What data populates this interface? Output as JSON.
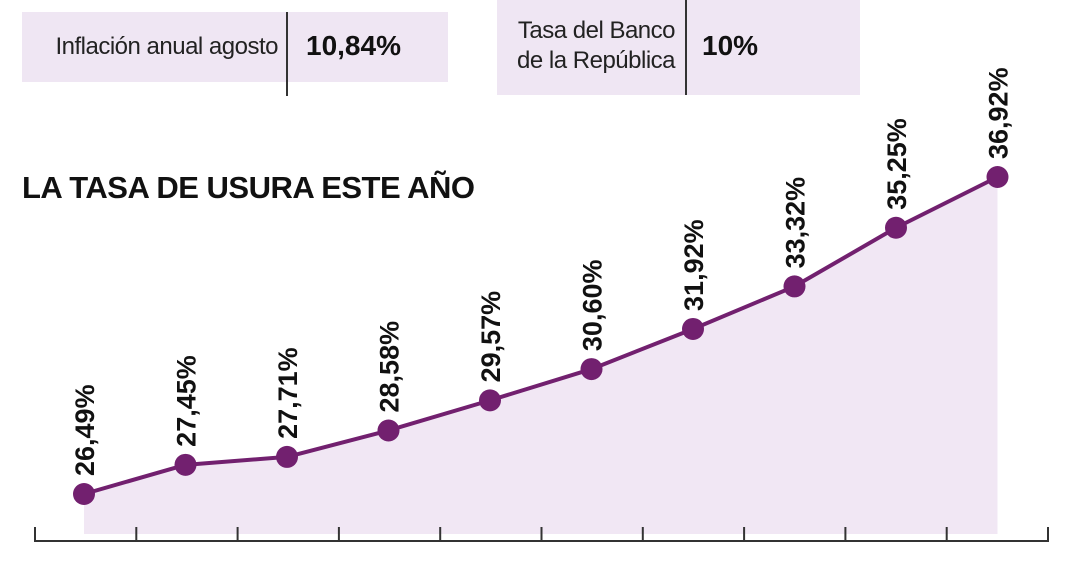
{
  "header": {
    "inflation_label": "Inflación anual agosto",
    "inflation_value": "10,84%",
    "bank_rate_label_line1": "Tasa del Banco",
    "bank_rate_label_line2": "de la República",
    "bank_rate_value": "10%"
  },
  "chart_data": {
    "type": "area",
    "title": "LA TASA DE USURA ESTE AÑO",
    "xlabel": "",
    "ylabel": "",
    "values": [
      26.49,
      27.45,
      27.71,
      28.58,
      29.57,
      30.6,
      31.92,
      33.32,
      35.25,
      36.92
    ],
    "data_labels": [
      "26,49%",
      "27,45%",
      "27,71%",
      "28,58%",
      "29,57%",
      "30,60%",
      "31,92%",
      "33,32%",
      "35,25%",
      "36,92%"
    ],
    "grid": false,
    "legend": "none",
    "colors": {
      "line": "#72206f",
      "fill": "#f1e7f4",
      "axis": "#333333"
    }
  }
}
